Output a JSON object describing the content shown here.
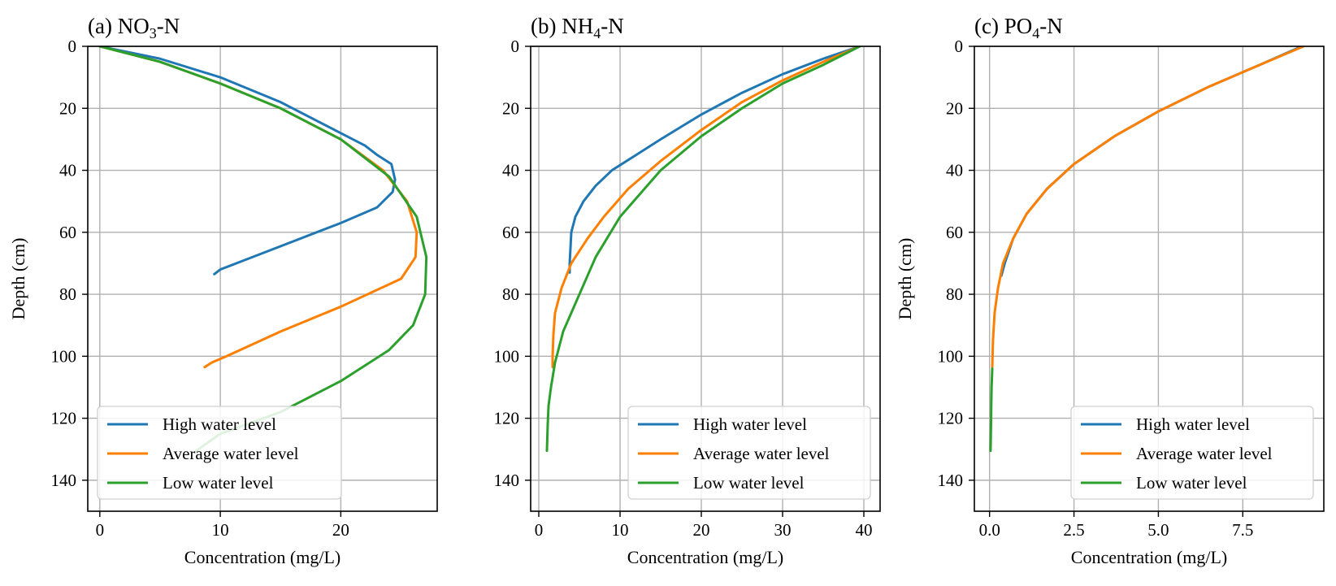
{
  "chart_data": [
    {
      "type": "line",
      "title_main": "(a) NO",
      "title_sub": "3",
      "title_tail": "-N",
      "xlabel": "Concentration (mg/L)",
      "ylabel": "Depth (cm)",
      "xlim": [
        -1,
        28
      ],
      "ylim": [
        150,
        0
      ],
      "xticks": [
        0,
        10,
        20
      ],
      "yticks": [
        0,
        20,
        40,
        60,
        80,
        100,
        120,
        140
      ],
      "grid": true,
      "legend": "lower-left",
      "series": [
        {
          "name": "High water level",
          "color": "#1f77b4",
          "x": [
            0,
            5,
            10,
            15,
            19,
            22,
            23,
            24.2,
            24.5,
            24.3,
            23,
            20,
            16,
            12,
            10,
            9.5
          ],
          "y": [
            0,
            4,
            10,
            18,
            26,
            32,
            35,
            38,
            43,
            47,
            52,
            57,
            63,
            69,
            72,
            73.5
          ]
        },
        {
          "name": "Average water level",
          "color": "#ff7f00",
          "x": [
            0,
            5,
            10,
            15,
            20,
            23.5,
            25.5,
            26.3,
            26.2,
            25,
            20,
            15,
            10.5,
            9.3,
            8.7
          ],
          "y": [
            0,
            5,
            12,
            20,
            30,
            40,
            50,
            60,
            68,
            75,
            84,
            92,
            100,
            102,
            103.5
          ]
        },
        {
          "name": "Low water level",
          "color": "#2ca02c",
          "x": [
            0,
            5,
            10,
            15,
            20,
            24,
            26.3,
            27.1,
            27,
            26,
            24,
            20,
            15,
            10,
            8
          ],
          "y": [
            0,
            5,
            12,
            20,
            30,
            42,
            55,
            68,
            80,
            90,
            98,
            108,
            118,
            125,
            130.5
          ]
        }
      ]
    },
    {
      "type": "line",
      "title_main": "(b) NH",
      "title_sub": "4",
      "title_tail": "-N",
      "xlabel": "Concentration (mg/L)",
      "ylabel": "",
      "xlim": [
        -1,
        42
      ],
      "ylim": [
        150,
        0
      ],
      "xticks": [
        0,
        10,
        20,
        30,
        40
      ],
      "yticks": [
        0,
        20,
        40,
        60,
        80,
        100,
        120,
        140
      ],
      "grid": true,
      "legend": "lower-right",
      "series": [
        {
          "name": "High water level",
          "color": "#1f77b4",
          "x": [
            39.5,
            35,
            30,
            25,
            20,
            15,
            12,
            9,
            7,
            5.5,
            4.5,
            4,
            3.9,
            3.8,
            3.8
          ],
          "y": [
            0,
            4,
            9,
            15,
            22,
            30,
            35,
            40,
            45,
            50,
            55,
            60,
            65,
            70,
            73
          ]
        },
        {
          "name": "Average water level",
          "color": "#ff7f00",
          "x": [
            39.5,
            35,
            30,
            25,
            20,
            15,
            11,
            8,
            6,
            4,
            2.8,
            2,
            1.8,
            1.7,
            1.7
          ],
          "y": [
            0,
            5,
            11,
            18,
            27,
            37,
            46,
            55,
            62,
            70,
            78,
            86,
            93,
            100,
            103.5
          ]
        },
        {
          "name": "Low water level",
          "color": "#2ca02c",
          "x": [
            39.5,
            35,
            30,
            25,
            20,
            15,
            10,
            7,
            5,
            3,
            2,
            1.5,
            1.2,
            1.1,
            1
          ],
          "y": [
            0,
            6,
            12,
            20,
            29,
            40,
            55,
            68,
            80,
            92,
            102,
            110,
            116,
            122,
            130.5
          ]
        }
      ]
    },
    {
      "type": "line",
      "title_main": "(c) PO",
      "title_sub": "4",
      "title_tail": "-N",
      "xlabel": "Concentration (mg/L)",
      "ylabel": "Depth (cm)",
      "xlim": [
        -0.45,
        9.9
      ],
      "ylim": [
        150,
        0
      ],
      "xticks": [
        0.0,
        2.5,
        5.0,
        7.5
      ],
      "xtick_labels": [
        "0.0",
        "2.5",
        "5.0",
        "7.5"
      ],
      "yticks": [
        0,
        20,
        40,
        60,
        80,
        100,
        120,
        140
      ],
      "grid": true,
      "legend": "lower-right",
      "series": [
        {
          "name": "High water level",
          "color": "#1f77b4",
          "x": [
            9.25,
            8,
            6.5,
            5,
            3.7,
            2.5,
            1.7,
            1.1,
            0.7,
            0.45,
            0.35
          ],
          "y": [
            0,
            6,
            13,
            21,
            29,
            38,
            46,
            54,
            62,
            70,
            74
          ]
        },
        {
          "name": "Average water level",
          "color": "#ff7f00",
          "x": [
            9.3,
            8,
            6.5,
            5,
            3.7,
            2.5,
            1.7,
            1.1,
            0.7,
            0.4,
            0.25,
            0.15,
            0.1,
            0.08
          ],
          "y": [
            0,
            6,
            13,
            21,
            29,
            38,
            46,
            54,
            62,
            70,
            78,
            86,
            95,
            103.5
          ]
        },
        {
          "name": "Low water level",
          "color": "#2ca02c",
          "x": [
            0.08,
            0.06,
            0.05,
            0.04,
            0.03
          ],
          "y": [
            104,
            110,
            116,
            124,
            130.5
          ]
        }
      ]
    }
  ]
}
